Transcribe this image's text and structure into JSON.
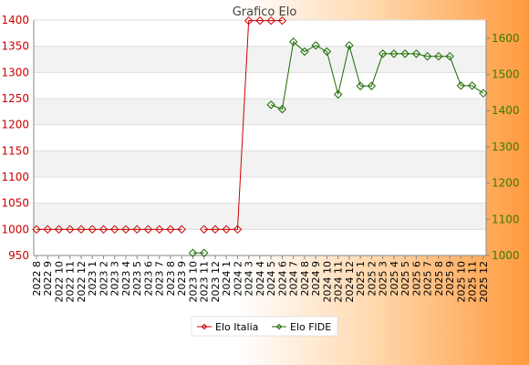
{
  "chart_data": {
    "type": "line",
    "title": "Grafico Elo",
    "grid": true,
    "legend_position": "bottom-center",
    "x_labels": [
      "2022 8",
      "2022 9",
      "2022 10",
      "2022 11",
      "2022 12",
      "2023 1",
      "2023 2",
      "2023 3",
      "2023 4",
      "2023 5",
      "2023 6",
      "2023 7",
      "2023 8",
      "2023 9",
      "2023 10",
      "2023 11",
      "2023 12",
      "2024 1",
      "2024 2",
      "2024 3",
      "2024 4",
      "2024 5",
      "2024 6",
      "2024 7",
      "2024 8",
      "2024 9",
      "2024 10",
      "2024 11",
      "2024 12",
      "2025 1",
      "2025 2",
      "2025 3",
      "2025 4",
      "2025 5",
      "2025 6",
      "2025 7",
      "2025 8",
      "2025 9",
      "2025 10",
      "2025 11",
      "2025 12"
    ],
    "y_left": {
      "min": 950,
      "max": 1400,
      "ticks": [
        950,
        1000,
        1050,
        1100,
        1150,
        1200,
        1250,
        1300,
        1350,
        1400
      ],
      "color": "#cc0000"
    },
    "y_right": {
      "min": 1000,
      "max": 1650,
      "ticks": [
        1000,
        1100,
        1200,
        1300,
        1400,
        1500,
        1600
      ],
      "color": "#3a7a00"
    },
    "series": [
      {
        "name": "Elo Italia",
        "axis": "left",
        "color": "#cc0000",
        "values": [
          1000,
          1000,
          1000,
          1000,
          1000,
          1000,
          1000,
          1000,
          1000,
          1000,
          1000,
          1000,
          1000,
          1000,
          null,
          1000,
          1000,
          1000,
          1000,
          1399,
          1399,
          1399,
          1399,
          null,
          null,
          null,
          null,
          null,
          null,
          null,
          null,
          null,
          null,
          null,
          null,
          null,
          null,
          null,
          null,
          null,
          null
        ]
      },
      {
        "name": "Elo FIDE",
        "axis": "right",
        "color": "#1a6b00",
        "values": [
          null,
          null,
          null,
          null,
          null,
          null,
          null,
          null,
          null,
          null,
          null,
          null,
          null,
          null,
          1007,
          1007,
          null,
          null,
          null,
          null,
          null,
          1416,
          1404,
          1590,
          1563,
          1580,
          1563,
          1445,
          1580,
          1468,
          1468,
          1557,
          1557,
          1557,
          1557,
          1550,
          1550,
          1550,
          1469,
          1469,
          1448
        ]
      }
    ]
  }
}
